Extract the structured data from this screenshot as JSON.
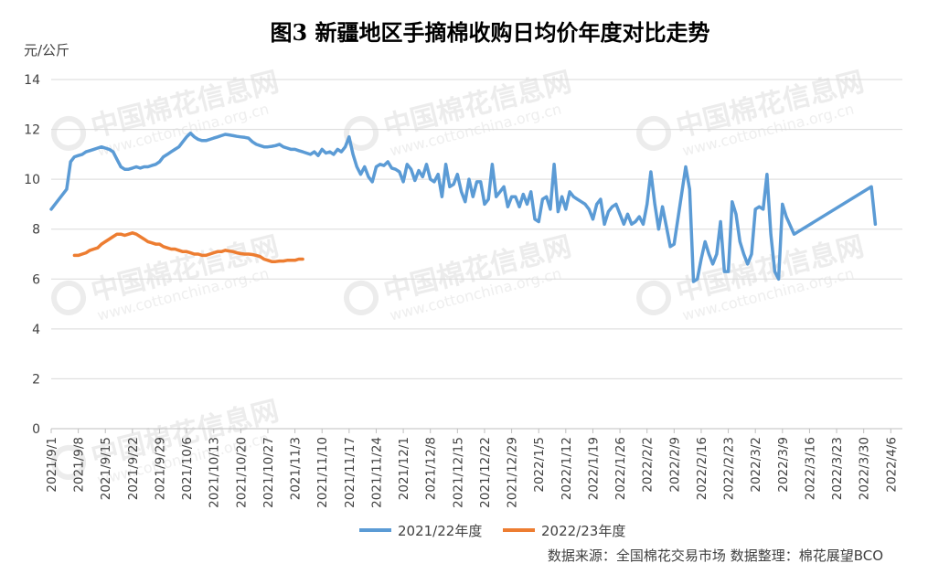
{
  "chart_data": {
    "type": "line",
    "title": "图3  新疆地区手摘棉收购日均价年度对比走势",
    "ylabel": "元/公斤",
    "ylim": [
      0,
      14
    ],
    "yticks": [
      0,
      2,
      4,
      6,
      8,
      10,
      12,
      14
    ],
    "grid": "horizontal",
    "legend_position": "bottom",
    "x_tick_labels": [
      "2021/9/1",
      "2021/9/8",
      "2021/9/15",
      "2021/9/22",
      "2021/9/29",
      "2021/10/6",
      "2021/10/13",
      "2021/10/20",
      "2021/10/27",
      "2021/11/3",
      "2021/11/10",
      "2021/11/17",
      "2021/11/24",
      "2021/12/1",
      "2021/12/8",
      "2021/12/15",
      "2021/12/22",
      "2021/12/29",
      "2022/1/5",
      "2022/1/12",
      "2022/1/19",
      "2022/1/26",
      "2022/2/2",
      "2022/2/9",
      "2022/2/16",
      "2022/2/23",
      "2022/3/2",
      "2022/3/9",
      "2022/3/16",
      "2022/3/23",
      "2022/3/30",
      "2022/4/6"
    ],
    "series": [
      {
        "name": "2021/22年度",
        "color": "#5b9bd5",
        "points": [
          [
            0,
            8.8
          ],
          [
            4,
            9.6
          ],
          [
            5,
            10.7
          ],
          [
            6,
            10.9
          ],
          [
            7,
            10.95
          ],
          [
            8,
            11.0
          ],
          [
            9,
            11.1
          ],
          [
            10,
            11.15
          ],
          [
            11,
            11.2
          ],
          [
            12,
            11.25
          ],
          [
            13,
            11.3
          ],
          [
            14,
            11.25
          ],
          [
            15,
            11.2
          ],
          [
            16,
            11.1
          ],
          [
            17,
            10.8
          ],
          [
            18,
            10.5
          ],
          [
            19,
            10.4
          ],
          [
            20,
            10.4
          ],
          [
            21,
            10.45
          ],
          [
            22,
            10.5
          ],
          [
            23,
            10.45
          ],
          [
            24,
            10.5
          ],
          [
            25,
            10.5
          ],
          [
            26,
            10.55
          ],
          [
            27,
            10.6
          ],
          [
            28,
            10.7
          ],
          [
            29,
            10.9
          ],
          [
            30,
            11.0
          ],
          [
            31,
            11.1
          ],
          [
            32,
            11.2
          ],
          [
            33,
            11.3
          ],
          [
            34,
            11.5
          ],
          [
            35,
            11.7
          ],
          [
            36,
            11.85
          ],
          [
            37,
            11.7
          ],
          [
            38,
            11.6
          ],
          [
            39,
            11.55
          ],
          [
            40,
            11.55
          ],
          [
            41,
            11.6
          ],
          [
            42,
            11.65
          ],
          [
            43,
            11.7
          ],
          [
            44,
            11.75
          ],
          [
            45,
            11.8
          ],
          [
            46,
            11.78
          ],
          [
            47,
            11.75
          ],
          [
            48,
            11.72
          ],
          [
            49,
            11.7
          ],
          [
            50,
            11.68
          ],
          [
            51,
            11.65
          ],
          [
            52,
            11.5
          ],
          [
            53,
            11.4
          ],
          [
            54,
            11.35
          ],
          [
            55,
            11.3
          ],
          [
            56,
            11.3
          ],
          [
            57,
            11.32
          ],
          [
            58,
            11.35
          ],
          [
            59,
            11.4
          ],
          [
            60,
            11.3
          ],
          [
            61,
            11.25
          ],
          [
            62,
            11.2
          ],
          [
            63,
            11.2
          ],
          [
            64,
            11.15
          ],
          [
            65,
            11.1
          ],
          [
            66,
            11.05
          ],
          [
            67,
            11.0
          ],
          [
            68,
            11.1
          ],
          [
            69,
            10.95
          ],
          [
            70,
            11.2
          ],
          [
            71,
            11.05
          ],
          [
            72,
            11.1
          ],
          [
            73,
            11.0
          ],
          [
            74,
            11.2
          ],
          [
            75,
            11.1
          ],
          [
            76,
            11.3
          ],
          [
            77,
            11.7
          ],
          [
            78,
            11.0
          ],
          [
            79,
            10.5
          ],
          [
            80,
            10.2
          ],
          [
            81,
            10.5
          ],
          [
            82,
            10.1
          ],
          [
            83,
            9.9
          ],
          [
            84,
            10.5
          ],
          [
            85,
            10.6
          ],
          [
            86,
            10.55
          ],
          [
            87,
            10.7
          ],
          [
            88,
            10.45
          ],
          [
            89,
            10.4
          ],
          [
            90,
            10.3
          ],
          [
            91,
            9.9
          ],
          [
            92,
            10.6
          ],
          [
            93,
            10.4
          ],
          [
            94,
            9.95
          ],
          [
            95,
            10.35
          ],
          [
            96,
            10.1
          ],
          [
            97,
            10.6
          ],
          [
            98,
            10.0
          ],
          [
            99,
            9.9
          ],
          [
            100,
            10.2
          ],
          [
            101,
            9.3
          ],
          [
            102,
            10.6
          ],
          [
            103,
            9.7
          ],
          [
            104,
            9.8
          ],
          [
            105,
            10.2
          ],
          [
            106,
            9.5
          ],
          [
            107,
            9.1
          ],
          [
            108,
            10.0
          ],
          [
            109,
            9.3
          ],
          [
            110,
            9.9
          ],
          [
            111,
            9.9
          ],
          [
            112,
            9.0
          ],
          [
            113,
            9.2
          ],
          [
            114,
            10.6
          ],
          [
            115,
            9.3
          ],
          [
            116,
            9.5
          ],
          [
            117,
            9.7
          ],
          [
            118,
            8.9
          ],
          [
            119,
            9.3
          ],
          [
            120,
            9.3
          ],
          [
            121,
            8.9
          ],
          [
            122,
            9.4
          ],
          [
            123,
            9.0
          ],
          [
            124,
            9.5
          ],
          [
            125,
            8.4
          ],
          [
            126,
            8.3
          ],
          [
            127,
            9.2
          ],
          [
            128,
            9.3
          ],
          [
            129,
            8.8
          ],
          [
            130,
            10.6
          ],
          [
            131,
            8.7
          ],
          [
            132,
            9.3
          ],
          [
            133,
            8.8
          ],
          [
            134,
            9.5
          ],
          [
            135,
            9.3
          ],
          [
            136,
            9.2
          ],
          [
            137,
            9.1
          ],
          [
            138,
            9.0
          ],
          [
            139,
            8.8
          ],
          [
            140,
            8.4
          ],
          [
            141,
            9.0
          ],
          [
            142,
            9.2
          ],
          [
            143,
            8.2
          ],
          [
            144,
            8.7
          ],
          [
            145,
            8.9
          ],
          [
            146,
            9.0
          ],
          [
            147,
            8.6
          ],
          [
            148,
            8.2
          ],
          [
            149,
            8.6
          ],
          [
            150,
            8.2
          ],
          [
            151,
            8.3
          ],
          [
            152,
            8.5
          ],
          [
            153,
            8.2
          ],
          [
            154,
            9.0
          ],
          [
            155,
            10.3
          ],
          [
            156,
            9.0
          ],
          [
            157,
            8.0
          ],
          [
            158,
            8.9
          ],
          [
            159,
            8.1
          ],
          [
            160,
            7.3
          ],
          [
            161,
            7.4
          ],
          [
            164,
            10.5
          ],
          [
            165,
            9.6
          ],
          [
            166,
            5.9
          ],
          [
            167,
            6.0
          ],
          [
            168,
            6.8
          ],
          [
            169,
            7.5
          ],
          [
            170,
            7.0
          ],
          [
            171,
            6.6
          ],
          [
            172,
            7.0
          ],
          [
            173,
            8.3
          ],
          [
            174,
            6.3
          ],
          [
            175,
            6.3
          ],
          [
            176,
            9.1
          ],
          [
            177,
            8.6
          ],
          [
            178,
            7.5
          ],
          [
            179,
            7.0
          ],
          [
            180,
            6.6
          ],
          [
            181,
            7.0
          ],
          [
            182,
            8.8
          ],
          [
            183,
            8.9
          ],
          [
            184,
            8.8
          ],
          [
            185,
            10.2
          ],
          [
            186,
            7.8
          ],
          [
            187,
            6.3
          ],
          [
            188,
            6.0
          ],
          [
            189,
            9.0
          ],
          [
            190,
            8.5
          ],
          [
            192,
            7.8
          ],
          [
            212,
            9.7
          ],
          [
            213,
            8.2
          ]
        ]
      },
      {
        "name": "2022/23年度",
        "color": "#ed7d31",
        "points": [
          [
            6,
            6.95
          ],
          [
            7,
            6.95
          ],
          [
            8,
            7.0
          ],
          [
            9,
            7.05
          ],
          [
            10,
            7.15
          ],
          [
            11,
            7.2
          ],
          [
            12,
            7.25
          ],
          [
            13,
            7.4
          ],
          [
            14,
            7.5
          ],
          [
            15,
            7.6
          ],
          [
            16,
            7.7
          ],
          [
            17,
            7.8
          ],
          [
            18,
            7.8
          ],
          [
            19,
            7.75
          ],
          [
            20,
            7.8
          ],
          [
            21,
            7.85
          ],
          [
            22,
            7.8
          ],
          [
            23,
            7.7
          ],
          [
            24,
            7.6
          ],
          [
            25,
            7.5
          ],
          [
            26,
            7.45
          ],
          [
            27,
            7.4
          ],
          [
            28,
            7.4
          ],
          [
            29,
            7.3
          ],
          [
            30,
            7.25
          ],
          [
            31,
            7.2
          ],
          [
            32,
            7.2
          ],
          [
            33,
            7.15
          ],
          [
            34,
            7.1
          ],
          [
            35,
            7.1
          ],
          [
            36,
            7.05
          ],
          [
            37,
            7.0
          ],
          [
            38,
            7.0
          ],
          [
            39,
            6.95
          ],
          [
            40,
            6.95
          ],
          [
            41,
            7.0
          ],
          [
            42,
            7.05
          ],
          [
            43,
            7.1
          ],
          [
            44,
            7.1
          ],
          [
            45,
            7.15
          ],
          [
            46,
            7.12
          ],
          [
            47,
            7.1
          ],
          [
            48,
            7.05
          ],
          [
            49,
            7.02
          ],
          [
            50,
            7.0
          ],
          [
            51,
            7.0
          ],
          [
            52,
            6.98
          ],
          [
            53,
            6.95
          ],
          [
            54,
            6.9
          ],
          [
            55,
            6.8
          ],
          [
            56,
            6.75
          ],
          [
            57,
            6.7
          ],
          [
            58,
            6.7
          ],
          [
            59,
            6.72
          ],
          [
            60,
            6.72
          ],
          [
            61,
            6.75
          ],
          [
            62,
            6.75
          ],
          [
            63,
            6.75
          ],
          [
            64,
            6.8
          ],
          [
            65,
            6.8
          ]
        ]
      }
    ]
  },
  "source_note": "数据来源：全国棉花交易市场  数据整理：棉花展望BCO",
  "watermark": {
    "cn": "中国棉花信息网",
    "url": "www.cottonchina.org.cn"
  }
}
